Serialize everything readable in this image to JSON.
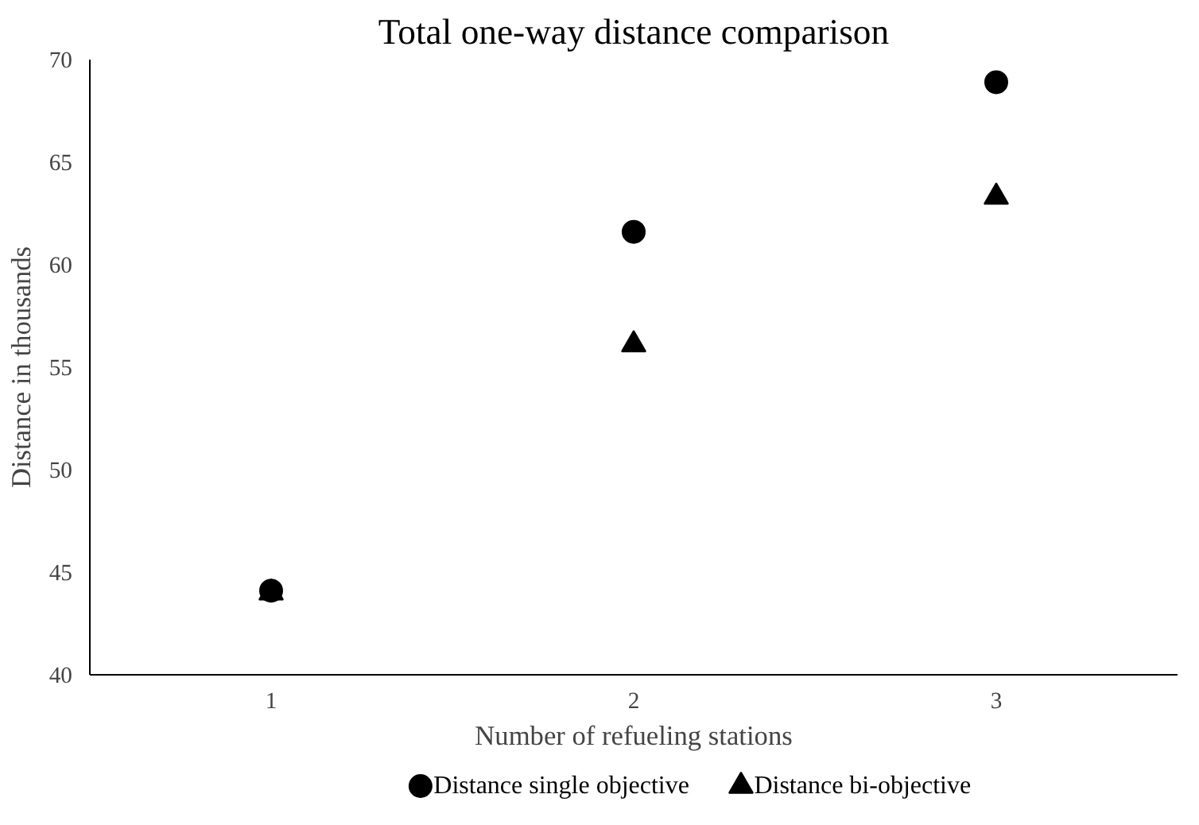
{
  "chart_data": {
    "type": "scatter",
    "title": "Total one-way distance comparison",
    "xlabel": "Number of refueling stations",
    "ylabel": "Distance in thousands",
    "x": [
      1,
      2,
      3
    ],
    "xlim": [
      0.5,
      3.5
    ],
    "xticks": [
      1,
      2,
      3
    ],
    "ylim": [
      40,
      70
    ],
    "yticks": [
      40,
      45,
      50,
      55,
      60,
      65,
      70
    ],
    "grid": false,
    "legend": "bottom",
    "series": [
      {
        "name": "Distance single objective",
        "color": "#000000",
        "marker": "circle",
        "values": [
          44.1,
          61.6,
          68.9
        ]
      },
      {
        "name": "Distance bi-objective",
        "color": "#000000",
        "marker": "triangle",
        "values": [
          44.0,
          56.1,
          63.3
        ]
      }
    ]
  }
}
